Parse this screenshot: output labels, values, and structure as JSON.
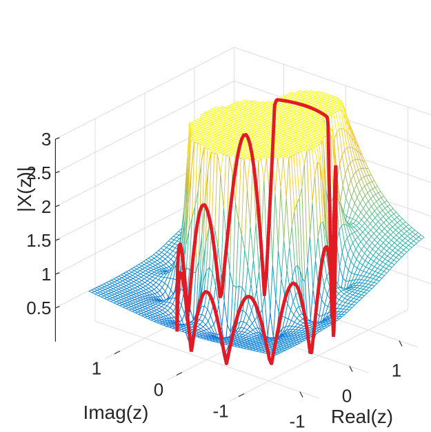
{
  "chart_data": {
    "type": "surface",
    "title": "",
    "xlabel": "Real(z)",
    "ylabel": "Imag(z)",
    "zlabel": "|X(z)|",
    "xlim": [
      -1.5,
      1.5
    ],
    "ylim": [
      -1.5,
      1.5
    ],
    "zlim": [
      0,
      3
    ],
    "x_ticks": [
      "-1",
      "0",
      "1"
    ],
    "y_ticks": [
      "-1",
      "0",
      "1"
    ],
    "z_ticks": [
      "0.5",
      "1",
      "1.5",
      "2",
      "2.5",
      "3"
    ],
    "surface": {
      "style": "mesh",
      "colormap": "parula",
      "clip_max": 3,
      "grid_points": 61,
      "zeros_count": 10,
      "zeros_radius": 1
    },
    "unit_circle": {
      "radius": 1,
      "color": "#e01b24"
    },
    "grid": true
  }
}
